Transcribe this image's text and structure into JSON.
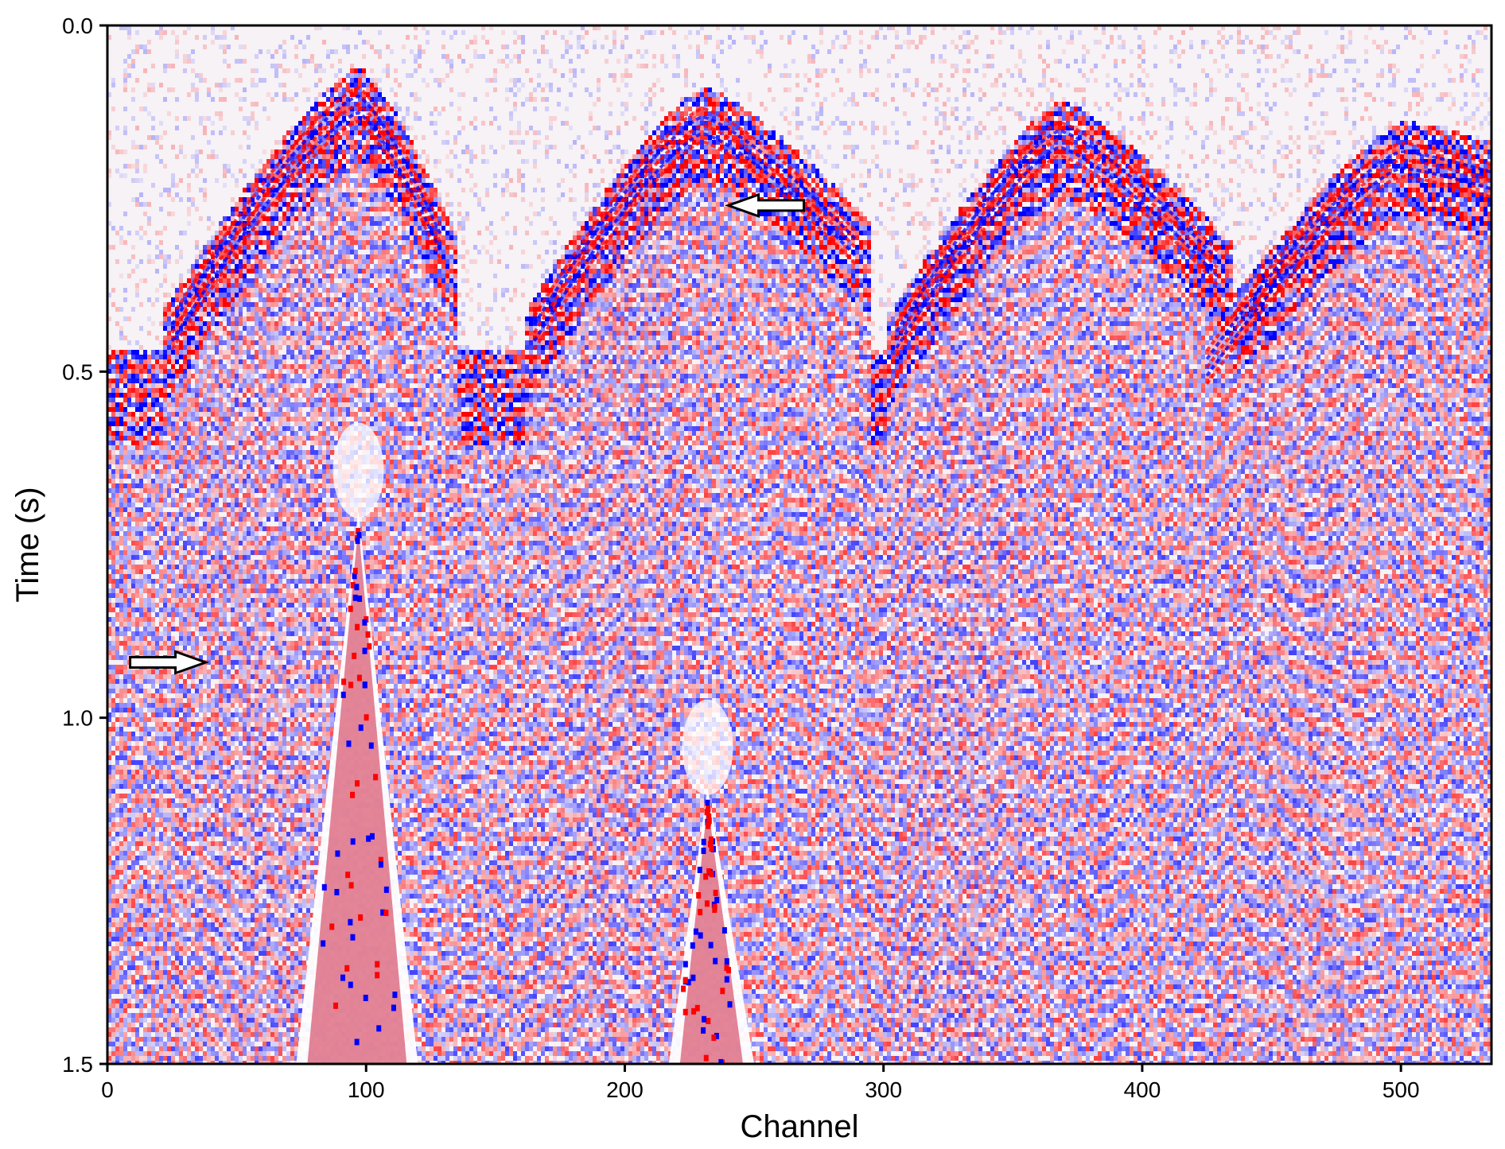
{
  "chart_data": {
    "type": "heatmap",
    "title": "",
    "xlabel": "Channel",
    "ylabel": "Time (s)",
    "xlim": [
      0,
      535
    ],
    "ylim": [
      0.0,
      1.5
    ],
    "y_inverted": true,
    "x_ticks": [
      0,
      100,
      200,
      300,
      400,
      500
    ],
    "x_tick_labels": [
      "0",
      "100",
      "200",
      "300",
      "400",
      "500"
    ],
    "y_ticks": [
      0.0,
      0.5,
      1.0,
      1.5
    ],
    "y_tick_labels": [
      "0.0",
      "0.5",
      "1.0",
      "1.5"
    ],
    "grid": false,
    "colormap": {
      "negative": "#0000ff",
      "zero": "#ffffff",
      "positive": "#ff0000"
    },
    "first_arrivals": [
      {
        "apex_channel": 97,
        "apex_time": 0.09,
        "left_channel": 25,
        "left_time": 0.42,
        "right_channel": 130,
        "right_time": 0.3
      },
      {
        "apex_channel": 230,
        "apex_time": 0.12,
        "left_channel": 165,
        "left_time": 0.42,
        "right_channel": 290,
        "right_time": 0.3
      },
      {
        "apex_channel": 368,
        "apex_time": 0.14,
        "left_channel": 305,
        "left_time": 0.43,
        "right_channel": 430,
        "right_time": 0.33
      },
      {
        "apex_channel": 500,
        "apex_time": 0.17,
        "left_channel": 425,
        "left_time": 0.47,
        "right_channel": 535,
        "right_time": 0.2
      }
    ],
    "noise_cones": [
      {
        "apex_channel": 97,
        "apex_time": 0.7,
        "left_base_channel": 73,
        "right_base_channel": 120,
        "base_time": 1.5
      },
      {
        "apex_channel": 232,
        "apex_time": 1.1,
        "left_base_channel": 217,
        "right_base_channel": 250,
        "base_time": 1.5
      }
    ],
    "annotations": [
      {
        "kind": "arrow",
        "direction": "left",
        "channel": 240,
        "time": 0.26
      },
      {
        "kind": "arrow",
        "direction": "right",
        "channel": 38,
        "time": 0.92
      }
    ]
  }
}
